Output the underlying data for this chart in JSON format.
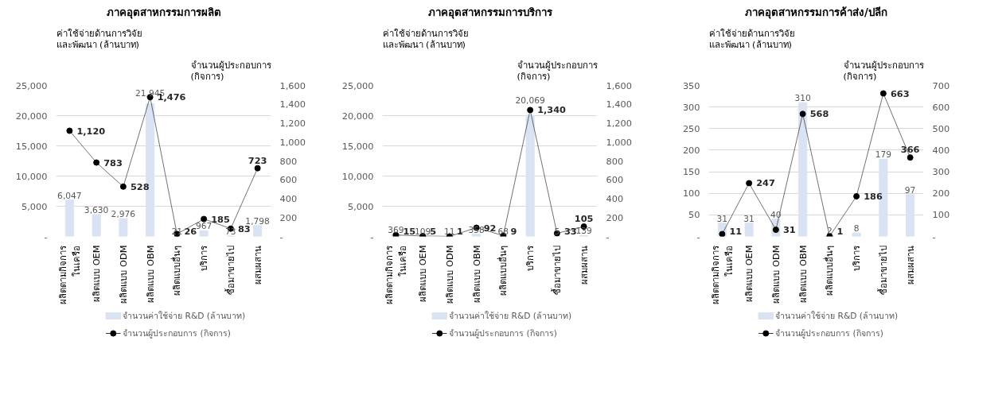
{
  "chart_data": [
    {
      "type": "bar",
      "title": "ภาคอุตสาหกรรมการผลิต",
      "ylabel": "ค่าใช้จ่ายด้านการวิจัย\nและพัฒนา (ล้านบาท)",
      "y2label": "จำนวนผู้ประกอบการ\n(กิจการ)",
      "categories": [
        "ผลิตตามกิจการ\nในเครือ",
        "ผลิตแบบ OEM",
        "ผลิตแบบ ODM",
        "ผลิตแบบ OBM",
        "ผลิตแบบอื่นๆ",
        "บริการ",
        "ซื้อมาขายไป",
        "ผสมผสาน"
      ],
      "series": [
        {
          "name": "จำนวนค่าใช้จ่าย R&D (ล้านบาท)",
          "color": "#dae3f3",
          "values": [
            6047,
            3630,
            2976,
            21945,
            21,
            967,
            73,
            1798
          ],
          "value_labels": [
            "6,047",
            "3,630",
            "2,976",
            "21,945",
            "21",
            "967",
            "73",
            "1,798"
          ]
        },
        {
          "name": "จำนวนผู้ประกอบการ (กิจการ)",
          "type": "line",
          "axis": "y2",
          "color": "#000000",
          "values": [
            1120,
            783,
            528,
            1476,
            26,
            185,
            83,
            723
          ],
          "value_labels": [
            "1,120",
            "783",
            "528",
            "1,476",
            "26",
            "185",
            "83",
            "723"
          ]
        }
      ],
      "ylim": [
        0,
        25000
      ],
      "yticks": [
        {
          "value": 0,
          "label": "-"
        },
        {
          "value": 5000,
          "label": "5,000"
        },
        {
          "value": 10000,
          "label": "10,000"
        },
        {
          "value": 15000,
          "label": "15,000"
        },
        {
          "value": 20000,
          "label": "20,000"
        },
        {
          "value": 25000,
          "label": "25,000"
        }
      ],
      "y2lim": [
        0,
        1600
      ],
      "y2ticks": [
        {
          "value": 0,
          "label": "-"
        },
        200,
        400,
        600,
        800,
        {
          "value": 1000,
          "label": "1,000"
        },
        {
          "value": 1200,
          "label": "1,200"
        },
        {
          "value": 1400,
          "label": "1,400"
        },
        {
          "value": 1600,
          "label": "1,600"
        }
      ],
      "grid": "y",
      "legend": "bottom",
      "marker": "circle"
    },
    {
      "type": "bar",
      "title": "ภาคอุตสาหกรรมการบริการ",
      "ylabel": "ค่าใช้จ่ายด้านการวิจัย\nและพัฒนา (ล้านบาท)",
      "y2label": "จำนวนผู้ประกอบการ\n(กิจการ)",
      "categories": [
        "ผลิตตามกิจการ\nในเครือ",
        "ผลิตแบบ OEM",
        "ผลิตแบบ ODM",
        "ผลิตแบบ OBM",
        "ผลิตแบบอื่นๆ",
        "บริการ",
        "ซื้อมาขายไป",
        "ผสมผสาน"
      ],
      "series": [
        {
          "name": "จำนวนค่าใช้จ่าย R&D (ล้านบาท)",
          "color": "#dae3f3",
          "values": [
            369,
            109,
            11,
            358,
            68,
            20069,
            5,
            139
          ],
          "value_labels": [
            "369",
            "109",
            "11",
            "358",
            "68",
            "20,069",
            "5",
            "139"
          ]
        },
        {
          "name": "จำนวนผู้ประกอบการ (กิจการ)",
          "type": "line",
          "axis": "y2",
          "color": "#000000",
          "values": [
            15,
            5,
            1,
            92,
            9,
            1340,
            33,
            105
          ],
          "value_labels": [
            "15",
            "5",
            "1",
            "92",
            "9",
            "1,340",
            "33",
            "105"
          ]
        }
      ],
      "ylim": [
        0,
        25000
      ],
      "yticks": [
        {
          "value": 0,
          "label": "-"
        },
        {
          "value": 5000,
          "label": "5,000"
        },
        {
          "value": 10000,
          "label": "10,000"
        },
        {
          "value": 15000,
          "label": "15,000"
        },
        {
          "value": 20000,
          "label": "20,000"
        },
        {
          "value": 25000,
          "label": "25,000"
        }
      ],
      "y2lim": [
        0,
        1600
      ],
      "y2ticks": [
        {
          "value": 0,
          "label": "-"
        },
        200,
        400,
        600,
        800,
        {
          "value": 1000,
          "label": "1,000"
        },
        {
          "value": 1200,
          "label": "1,200"
        },
        {
          "value": 1400,
          "label": "1,400"
        },
        {
          "value": 1600,
          "label": "1,600"
        }
      ],
      "grid": "y",
      "legend": "bottom",
      "marker": "circle"
    },
    {
      "type": "bar",
      "title": "ภาคอุตสาหกรรมการค้าส่ง/ปลีก",
      "ylabel": "ค่าใช้จ่ายด้านการวิจัย\nและพัฒนา (ล้านบาท)",
      "y2label": "จำนวนผู้ประกอบการ\n(กิจการ)",
      "categories": [
        "ผลิตตามกิจการ\nในเครือ",
        "ผลิตแบบ OEM",
        "ผลิตแบบ ODM",
        "ผลิตแบบ OBM",
        "ผลิตแบบอื่นๆ",
        "บริการ",
        "ซื้อมาขายไป",
        "ผสมผสาน"
      ],
      "series": [
        {
          "name": "จำนวนค่าใช้จ่าย R&D (ล้านบาท)",
          "color": "#dae3f3",
          "values": [
            31,
            31,
            40,
            310,
            2,
            8,
            179,
            97
          ],
          "value_labels": [
            "31",
            "31",
            "40",
            "310",
            "2",
            "8",
            "179",
            "97"
          ]
        },
        {
          "name": "จำนวนผู้ประกอบการ (กิจการ)",
          "type": "line",
          "axis": "y2",
          "color": "#000000",
          "values": [
            11,
            247,
            31,
            568,
            1,
            186,
            663,
            366
          ],
          "value_labels": [
            "11",
            "247",
            "31",
            "568",
            "1",
            "186",
            "663",
            "366"
          ]
        }
      ],
      "ylim": [
        0,
        350
      ],
      "yticks": [
        {
          "value": 0,
          "label": "-"
        },
        50,
        100,
        150,
        200,
        250,
        300,
        350
      ],
      "y2lim": [
        0,
        700
      ],
      "y2ticks": [
        {
          "value": 0,
          "label": "-"
        },
        100,
        200,
        300,
        400,
        500,
        600,
        700
      ],
      "grid": "y",
      "legend": "bottom",
      "marker": "circle"
    }
  ]
}
